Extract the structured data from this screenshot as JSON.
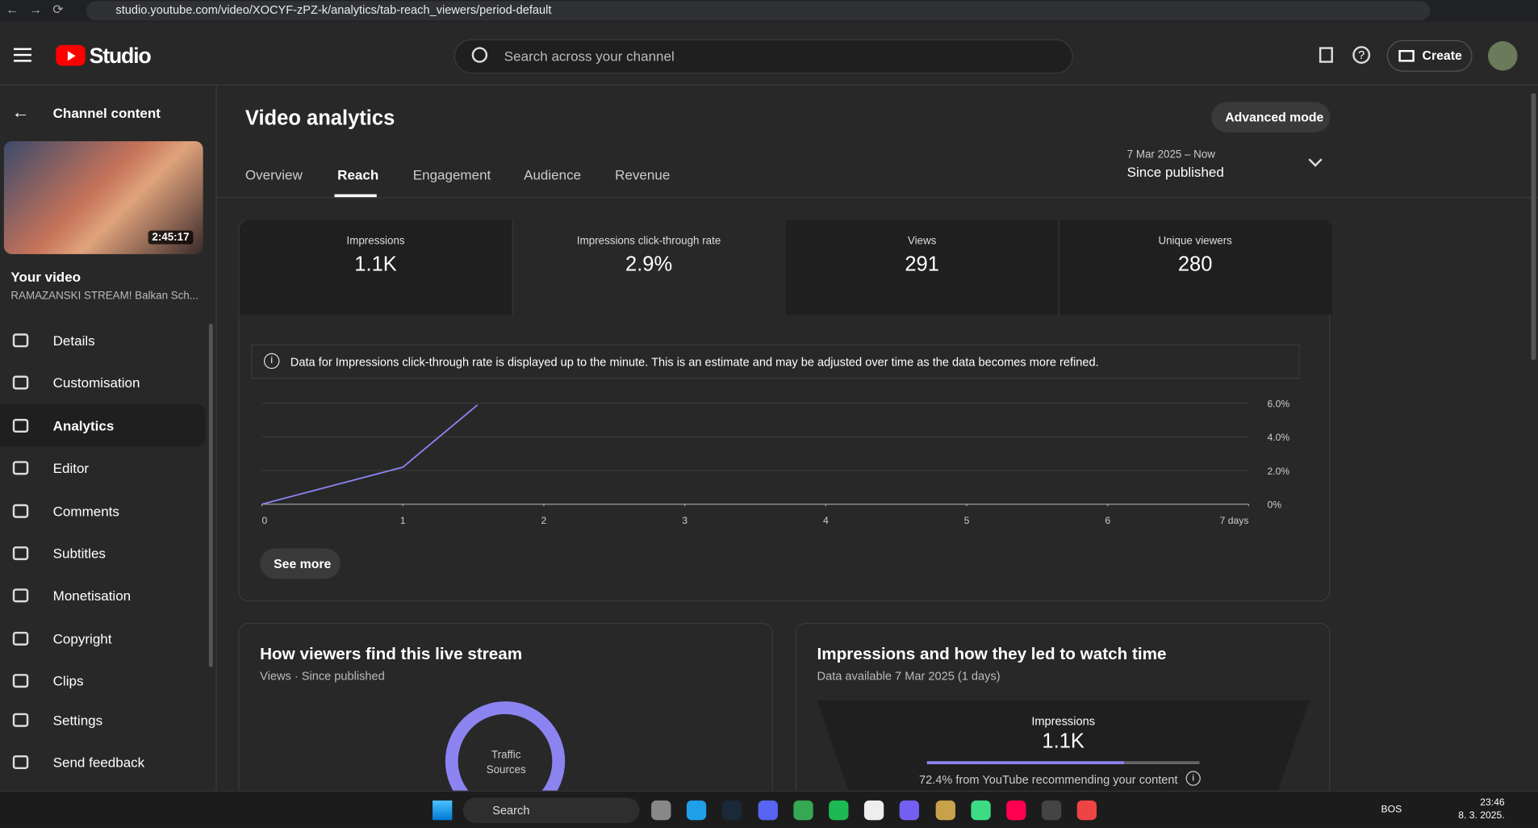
{
  "browser": {
    "url": "studio.youtube.com/video/XOCYF-zPZ-k/analytics/tab-reach_viewers/period-default"
  },
  "header": {
    "logo": "Studio",
    "search_placeholder": "Search across your channel",
    "create": "Create"
  },
  "sidebar": {
    "back": "Channel content",
    "duration": "2:45:17",
    "your_video": "Your video",
    "video_title": "RAMAZANSKI STREAM! Balkan Sch...",
    "nav": [
      "Details",
      "Customisation",
      "Analytics",
      "Editor",
      "Comments",
      "Subtitles",
      "Monetisation",
      "Copyright",
      "Clips"
    ],
    "footer": [
      "Settings",
      "Send feedback"
    ]
  },
  "main": {
    "title": "Video analytics",
    "advanced_mode": "Advanced mode",
    "tabs": [
      "Overview",
      "Reach",
      "Engagement",
      "Audience",
      "Revenue"
    ],
    "period_range": "7 Mar 2025 – Now",
    "period_label": "Since published",
    "metrics": [
      {
        "label": "Impressions",
        "value": "1.1K"
      },
      {
        "label": "Impressions click-through rate",
        "value": "2.9%"
      },
      {
        "label": "Views",
        "value": "291"
      },
      {
        "label": "Unique viewers",
        "value": "280"
      }
    ],
    "notice": "Data for Impressions click-through rate is displayed up to the minute. This is an estimate and may be adjusted over time as the data becomes more refined.",
    "see_more": "See more"
  },
  "ctr_chart": {
    "type": "line",
    "x": [
      0,
      1,
      1.53
    ],
    "values": [
      0,
      2.2,
      5.9
    ],
    "color": "#8b84f0",
    "xlim": [
      0,
      7
    ],
    "ylim": [
      0,
      6
    ],
    "xticks": [
      0,
      1,
      2,
      3,
      4,
      5,
      6,
      {
        "value": 7,
        "label": "7 days"
      }
    ],
    "yticks": [
      {
        "value": 0,
        "label": "0%"
      },
      {
        "value": 2,
        "label": "2.0%"
      },
      {
        "value": 4,
        "label": "4.0%"
      },
      {
        "value": 6,
        "label": "6.0%"
      }
    ]
  },
  "cards": {
    "traffic": {
      "title": "How viewers find this live stream",
      "subtitle": "Views · Since published",
      "center": [
        "Traffic",
        "Sources"
      ]
    },
    "funnel": {
      "title": "Impressions and how they led to watch time",
      "subtitle": "Data available 7 Mar 2025 (1 days)",
      "label": "Impressions",
      "value": "1.1K",
      "share": 72.4,
      "note": "72.4% from YouTube recommending your content"
    }
  },
  "taskbar": {
    "search": "Search",
    "lang": "BOS",
    "time": "23:46",
    "date": "8. 3. 2025."
  }
}
